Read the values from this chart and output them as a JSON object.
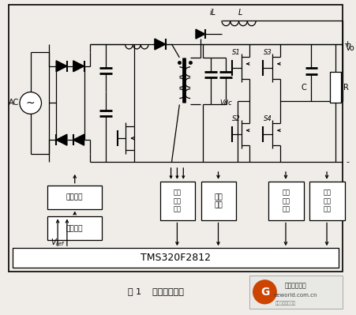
{
  "fig_width": 4.51,
  "fig_height": 3.99,
  "dpi": 100,
  "bg_color": "#f0ede8",
  "title": "图 1    系统整体框图",
  "tms_label": "TMS320F2812",
  "box_left_1": "驱动电路",
  "box_left_2": "控制电路",
  "box_mid_1": "电压\n采样\n网络",
  "box_mid_2": "驱动\n电路",
  "box_right_1": "电流\n采样\n网络",
  "box_right_2": "电压\n采样\n网络",
  "ac_label": "AC",
  "vdc_label": "Vdc",
  "vref_label": "Vref",
  "vo_label": "Vo",
  "il_label": "iL",
  "l_label": "L",
  "s1_label": "S1",
  "s2_label": "S2",
  "s3_label": "S3",
  "s4_label": "S4",
  "c_label": "C",
  "r_label": "R",
  "wm_text1": "电子工程世界",
  "wm_text2": "eeworld.com.cn"
}
